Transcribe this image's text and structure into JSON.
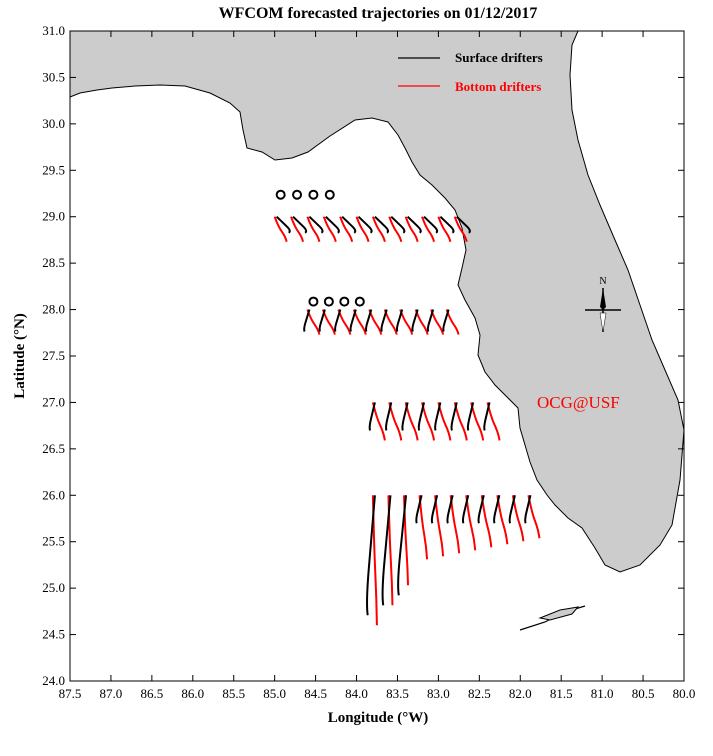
{
  "chart_data": {
    "type": "map",
    "title": "WFCOM forecasted trajectories on 01/12/2017",
    "xlabel": "Longitude (°W)",
    "ylabel": "Latitude (°N)",
    "xlim": [
      87.5,
      80.0
    ],
    "ylim": [
      24.0,
      31.0
    ],
    "x_ticks": [
      "87.5",
      "87.0",
      "86.5",
      "86.0",
      "85.5",
      "85.0",
      "84.5",
      "84.0",
      "83.5",
      "83.0",
      "82.5",
      "82.0",
      "81.5",
      "81.0",
      "80.5",
      "80.0"
    ],
    "y_ticks": [
      "24.0",
      "24.5",
      "25.0",
      "25.5",
      "26.0",
      "26.5",
      "27.0",
      "27.5",
      "28.0",
      "28.5",
      "29.0",
      "29.5",
      "30.0",
      "30.5",
      "31.0"
    ],
    "legend": [
      {
        "name": "Surface drifters",
        "color": "#000000"
      },
      {
        "name": "Bottom drifters",
        "color": "#ff0000"
      }
    ],
    "annotation": "OCG@USF",
    "compass_label": "N",
    "release_lines": [
      {
        "lat": 29.0,
        "lon_start": 85.0,
        "lon_end": 82.8,
        "count": 12
      },
      {
        "lat": 28.0,
        "lon_start": 84.6,
        "lon_end": 82.9,
        "count": 10
      },
      {
        "lat": 27.0,
        "lon_start": 83.8,
        "lon_end": 82.4,
        "count": 8
      },
      {
        "lat": 26.0,
        "lon_start": 83.8,
        "lon_end": 81.9,
        "count": 11
      }
    ]
  },
  "colors": {
    "land": "#cccccc",
    "surface": "#000000",
    "bottom": "#ff0000",
    "annotation": "#ff0000"
  }
}
